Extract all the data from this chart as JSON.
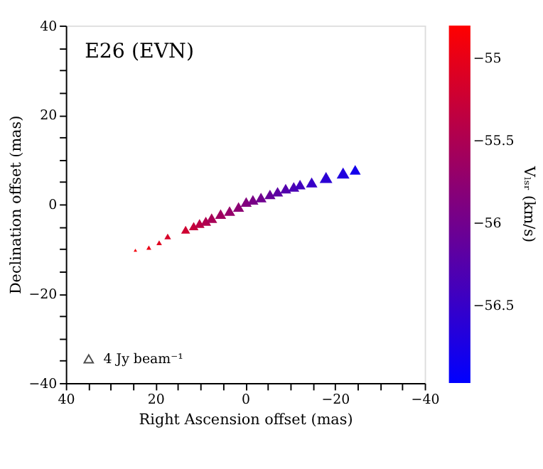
{
  "chart_data": {
    "type": "bubble",
    "annotations": [
      "E26 (EVN)"
    ],
    "xlabel": "Right Ascension offset (mas)",
    "ylabel": "Declination offset (mas)",
    "clabel": "Vₗₛᵣ (km/s)",
    "x": [
      24.5,
      21.5,
      19.2,
      17.3,
      13.3,
      11.5,
      10.2,
      8.8,
      7.5,
      5.5,
      3.5,
      1.5,
      -0.2,
      -1.7,
      -3.5,
      -5.5,
      -7.2,
      -9.0,
      -10.8,
      -12.2,
      -14.8,
      -18.0,
      -21.8,
      -24.5
    ],
    "values": [
      -10.3,
      -9.7,
      -8.6,
      -7.2,
      -5.7,
      -4.9,
      -4.3,
      -3.8,
      -3.1,
      -2.2,
      -1.5,
      -0.6,
      0.5,
      1.0,
      1.5,
      2.2,
      2.8,
      3.5,
      3.9,
      4.4,
      4.9,
      6.0,
      7.0,
      7.7
    ],
    "sizes": [
      0.6,
      1.2,
      1.5,
      2.2,
      4,
      4.5,
      5,
      5.5,
      6,
      6,
      6,
      6,
      6,
      6,
      6,
      6,
      6,
      6,
      6,
      6,
      6.5,
      8,
      8,
      6
    ],
    "cvalues": [
      -54.9,
      -54.98,
      -55.06,
      -55.14,
      -55.22,
      -55.3,
      -55.38,
      -55.46,
      -55.54,
      -55.62,
      -55.7,
      -55.78,
      -55.86,
      -55.94,
      -56.02,
      -56.1,
      -56.18,
      -56.26,
      -56.34,
      -56.42,
      -56.5,
      -56.6,
      -56.7,
      -56.8
    ],
    "size_legend": [
      {
        "value": 4,
        "label": "4 Jy beam⁻¹"
      }
    ],
    "marker": "triangle",
    "grid": false,
    "clim": [
      -54.8,
      -56.97
    ],
    "cticks": [
      -55,
      -55.5,
      -56,
      -56.5
    ],
    "xlim": [
      40,
      -40
    ],
    "ylim": [
      -40,
      40
    ],
    "xticks": [
      40,
      {
        "value": 35,
        "label": null
      },
      {
        "value": 30,
        "label": null
      },
      {
        "value": 25,
        "label": null
      },
      20,
      {
        "value": 15,
        "label": null
      },
      {
        "value": 10,
        "label": null
      },
      {
        "value": 5,
        "label": null
      },
      0,
      {
        "value": -5,
        "label": null
      },
      {
        "value": -10,
        "label": null
      },
      {
        "value": -15,
        "label": null
      },
      -20,
      {
        "value": -25,
        "label": null
      },
      {
        "value": -30,
        "label": null
      },
      {
        "value": -35,
        "label": null
      },
      -40
    ],
    "yticks": [
      -40,
      {
        "value": -35,
        "label": null
      },
      {
        "value": -30,
        "label": null
      },
      {
        "value": -25,
        "label": null
      },
      -20,
      {
        "value": -15,
        "label": null
      },
      {
        "value": -10,
        "label": null
      },
      {
        "value": -5,
        "label": null
      },
      0,
      {
        "value": 5,
        "label": null
      },
      {
        "value": 10,
        "label": null
      },
      {
        "value": 15,
        "label": null
      },
      20,
      {
        "value": 25,
        "label": null
      },
      {
        "value": 30,
        "label": null
      },
      {
        "value": 35,
        "label": null
      },
      40
    ]
  }
}
